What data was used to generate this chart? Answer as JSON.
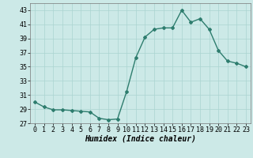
{
  "x": [
    0,
    1,
    2,
    3,
    4,
    5,
    6,
    7,
    8,
    9,
    10,
    11,
    12,
    13,
    14,
    15,
    16,
    17,
    18,
    19,
    20,
    21,
    22,
    23
  ],
  "y": [
    30.0,
    29.3,
    28.9,
    28.9,
    28.8,
    28.7,
    28.6,
    27.7,
    27.5,
    27.6,
    31.5,
    36.3,
    39.2,
    40.3,
    40.5,
    40.5,
    43.0,
    41.3,
    41.8,
    40.3,
    37.3,
    35.8,
    35.5,
    35.0
  ],
  "line_color": "#2e7d6e",
  "marker": "D",
  "marker_size": 2,
  "line_width": 1.0,
  "bg_color": "#cce9e7",
  "grid_color": "#aad4d1",
  "xlabel": "Humidex (Indice chaleur)",
  "xlabel_fontsize": 7,
  "tick_fontsize": 6,
  "xlim": [
    -0.5,
    23.5
  ],
  "ylim": [
    27,
    44
  ],
  "yticks": [
    27,
    29,
    31,
    33,
    35,
    37,
    39,
    41,
    43
  ],
  "xticks": [
    0,
    1,
    2,
    3,
    4,
    5,
    6,
    7,
    8,
    9,
    10,
    11,
    12,
    13,
    14,
    15,
    16,
    17,
    18,
    19,
    20,
    21,
    22,
    23
  ]
}
